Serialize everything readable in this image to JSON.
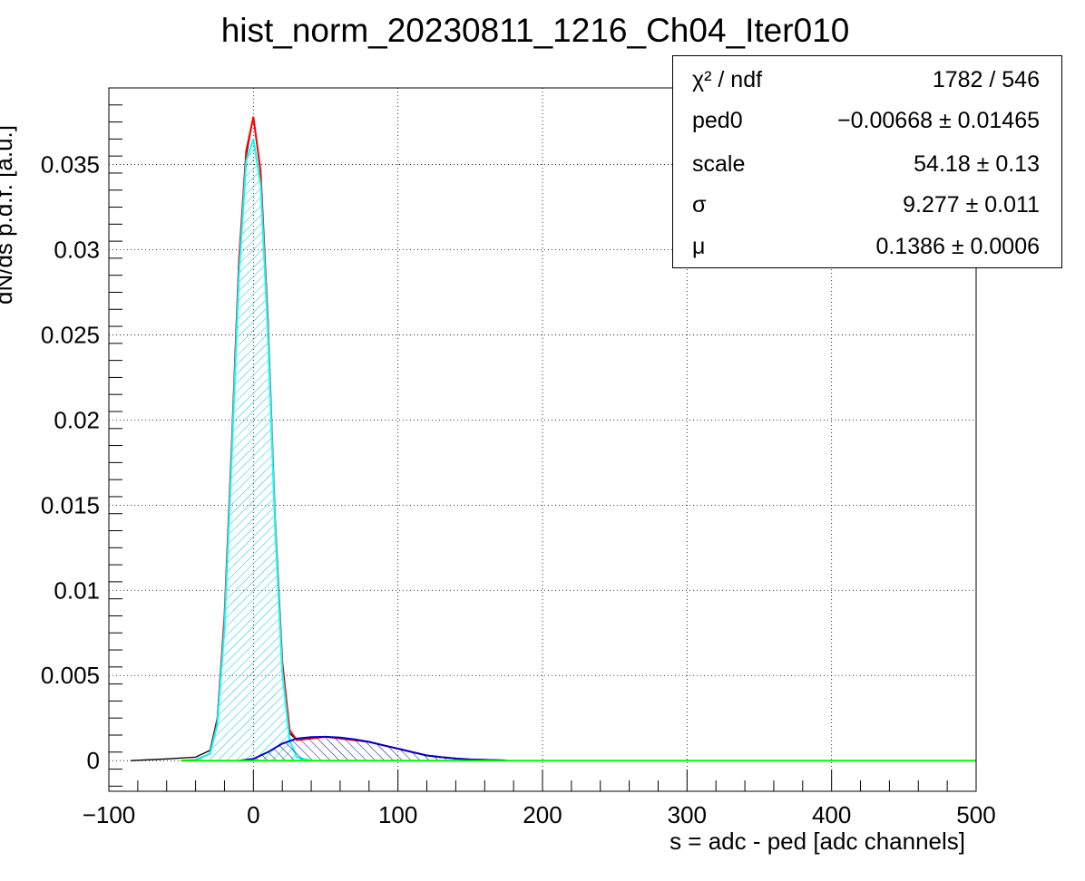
{
  "chart_data": {
    "type": "line",
    "title": "hist_norm_20230811_1216_Ch04_Iter010",
    "xlabel": "s = adc - ped [adc channels]",
    "ylabel": "dN/ds p.d.f. [a.u.]",
    "xlim": [
      -100,
      500
    ],
    "ylim": [
      -0.0018,
      0.0395
    ],
    "xticks": [
      -100,
      0,
      100,
      200,
      300,
      400,
      500
    ],
    "xtick_labels": [
      "−100",
      "0",
      "100",
      "200",
      "300",
      "400",
      "500"
    ],
    "yticks": [
      0,
      0.005,
      0.01,
      0.015,
      0.02,
      0.025,
      0.03,
      0.035
    ],
    "ytick_labels": [
      "0",
      "0.005",
      "0.01",
      "0.015",
      "0.02",
      "0.025",
      "0.03",
      "0.035"
    ],
    "grid": true,
    "series": [
      {
        "color": "#000000",
        "style": "histogram",
        "x": [
          -85,
          -60,
          -40,
          -30,
          -25,
          -20,
          -15,
          -10,
          -5,
          0,
          5,
          10,
          15,
          20,
          25,
          30,
          40,
          50,
          60,
          70,
          80,
          90,
          100,
          110,
          120,
          130,
          140,
          150,
          160,
          170,
          175
        ],
        "y": [
          0,
          0.0001,
          0.0002,
          0.0006,
          0.0025,
          0.0085,
          0.0185,
          0.0295,
          0.0355,
          0.0378,
          0.0345,
          0.026,
          0.014,
          0.0055,
          0.0016,
          0.0012,
          0.0013,
          0.0014,
          0.0013,
          0.0012,
          0.0011,
          0.0009,
          0.0007,
          0.0005,
          0.0003,
          0.0002,
          0.00012,
          7e-05,
          4e-05,
          2e-05,
          1e-05
        ]
      },
      {
        "color": "#ff0000",
        "style": "line",
        "x": [
          -50,
          -40,
          -30,
          -25,
          -20,
          -15,
          -10,
          -5,
          0,
          5,
          10,
          15,
          20,
          25,
          30,
          40,
          50,
          60,
          70,
          80,
          90,
          100,
          110,
          120,
          130,
          140,
          150,
          160,
          175
        ],
        "y": [
          0,
          3e-05,
          0.0004,
          0.0023,
          0.0085,
          0.0185,
          0.0293,
          0.0358,
          0.0378,
          0.0346,
          0.0258,
          0.0142,
          0.0058,
          0.0018,
          0.0012,
          0.0013,
          0.0014,
          0.0013,
          0.0012,
          0.0011,
          0.0009,
          0.0007,
          0.0005,
          0.0003,
          0.0002,
          0.00012,
          7e-05,
          4e-05,
          1e-05
        ]
      },
      {
        "color": "#00ffff",
        "style": "filled",
        "x": [
          -40,
          -30,
          -25,
          -20,
          -15,
          -10,
          -5,
          0,
          5,
          10,
          15,
          20,
          25,
          30,
          40
        ],
        "y": [
          1e-05,
          0.0004,
          0.0021,
          0.0078,
          0.0178,
          0.0285,
          0.0352,
          0.0365,
          0.0338,
          0.0252,
          0.0138,
          0.0052,
          0.0012,
          0.0002,
          0
        ]
      },
      {
        "color": "#0000cc",
        "style": "filled",
        "x": [
          -10,
          0,
          10,
          20,
          30,
          40,
          50,
          60,
          70,
          80,
          90,
          100,
          110,
          120,
          130,
          140,
          150,
          160,
          175
        ],
        "y": [
          0,
          0.0001,
          0.0005,
          0.001,
          0.0013,
          0.00138,
          0.0014,
          0.00135,
          0.00125,
          0.0011,
          0.0009,
          0.0007,
          0.0005,
          0.0003,
          0.0002,
          0.00012,
          7e-05,
          4e-05,
          1e-05
        ]
      },
      {
        "color": "#00ff00",
        "style": "line",
        "x": [
          -50,
          500
        ],
        "y": [
          0,
          0
        ]
      }
    ],
    "stats": {
      "rows": [
        {
          "key": "χ² / ndf",
          "value": "1782 / 546"
        },
        {
          "key": "ped0",
          "value": "−0.00668 ± 0.01465"
        },
        {
          "key": "scale",
          "value": "54.18 ± 0.13"
        },
        {
          "key": "σ",
          "value": "9.277 ± 0.011"
        },
        {
          "key": "μ",
          "value": "0.1386 ± 0.0006"
        }
      ]
    }
  }
}
